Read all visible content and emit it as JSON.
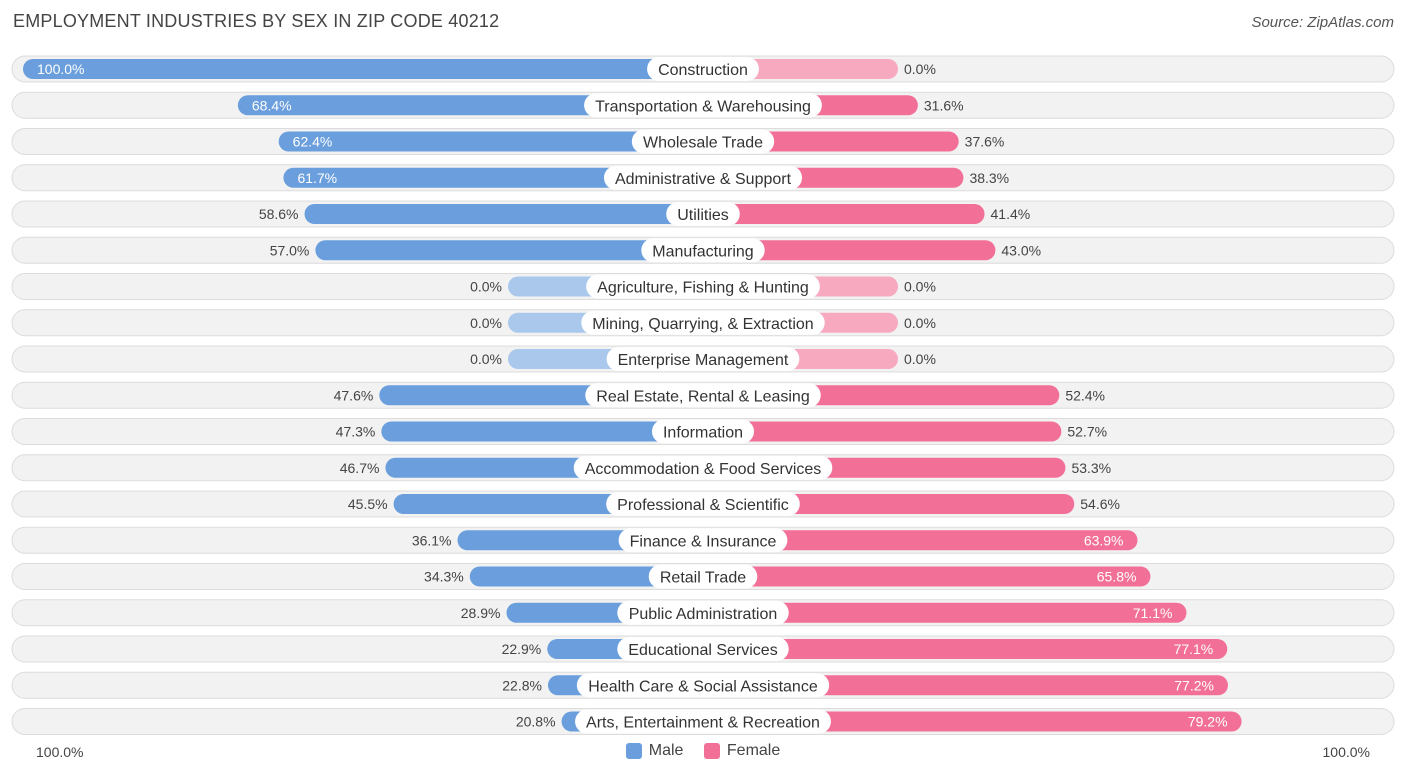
{
  "header": {
    "title": "EMPLOYMENT INDUSTRIES BY SEX IN ZIP CODE 40212",
    "source": "Source: ZipAtlas.com"
  },
  "axis": {
    "left_label": "100.0%",
    "right_label": "100.0%"
  },
  "legend": {
    "male": "Male",
    "female": "Female"
  },
  "colors": {
    "male": "#6a9edc",
    "male_light": "#aac8ec",
    "female": "#f27097",
    "female_light": "#f7a9c0",
    "row_bg": "#f2f2f2",
    "row_border": "#dcdcdc"
  },
  "chart_data": {
    "type": "bar",
    "title": "EMPLOYMENT INDUSTRIES BY SEX IN ZIP CODE 40212",
    "orientation": "horizontal-diverging",
    "categories": [
      "Construction",
      "Transportation & Warehousing",
      "Wholesale Trade",
      "Administrative & Support",
      "Utilities",
      "Manufacturing",
      "Agriculture, Fishing & Hunting",
      "Mining, Quarrying, & Extraction",
      "Enterprise Management",
      "Real Estate, Rental & Leasing",
      "Information",
      "Accommodation & Food Services",
      "Professional & Scientific",
      "Finance & Insurance",
      "Retail Trade",
      "Public Administration",
      "Educational Services",
      "Health Care & Social Assistance",
      "Arts, Entertainment & Recreation"
    ],
    "series": [
      {
        "name": "Male",
        "values": [
          100.0,
          68.4,
          62.4,
          61.7,
          58.6,
          57.0,
          0.0,
          0.0,
          0.0,
          47.6,
          47.3,
          46.7,
          45.5,
          36.1,
          34.3,
          28.9,
          22.9,
          22.8,
          20.8
        ]
      },
      {
        "name": "Female",
        "values": [
          0.0,
          31.6,
          37.6,
          38.3,
          41.4,
          43.0,
          0.0,
          0.0,
          0.0,
          52.4,
          52.7,
          53.3,
          54.6,
          63.9,
          65.8,
          71.1,
          77.1,
          77.2,
          79.2
        ]
      }
    ],
    "male_labels": [
      "100.0%",
      "68.4%",
      "62.4%",
      "61.7%",
      "58.6%",
      "57.0%",
      "0.0%",
      "0.0%",
      "0.0%",
      "47.6%",
      "47.3%",
      "46.7%",
      "45.5%",
      "36.1%",
      "34.3%",
      "28.9%",
      "22.9%",
      "22.8%",
      "20.8%"
    ],
    "female_labels": [
      "0.0%",
      "31.6%",
      "37.6%",
      "38.3%",
      "41.4%",
      "43.0%",
      "0.0%",
      "0.0%",
      "0.0%",
      "52.4%",
      "52.7%",
      "53.3%",
      "54.6%",
      "63.9%",
      "65.8%",
      "71.1%",
      "77.1%",
      "77.2%",
      "79.2%"
    ],
    "xlim": [
      -100,
      100
    ],
    "xlabel": "",
    "ylabel": "",
    "legend_position": "bottom-center"
  }
}
